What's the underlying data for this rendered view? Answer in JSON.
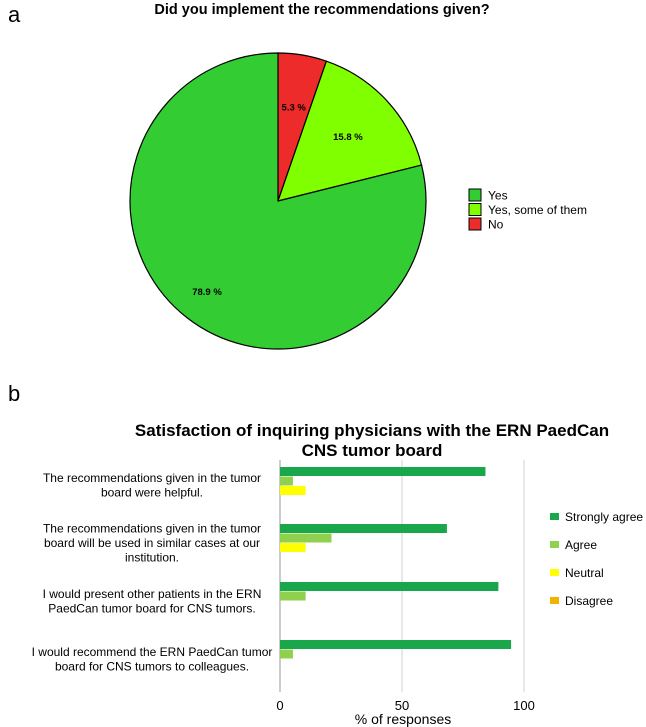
{
  "panels": {
    "a_letter": "a",
    "b_letter": "b"
  },
  "chart_data": [
    {
      "type": "pie",
      "title": "Did you implement the recommendations given?",
      "slices": [
        {
          "label": "No",
          "value": 5.3,
          "value_label": "5.3 %",
          "color": "#ee2b2b"
        },
        {
          "label": "Yes, some of them",
          "value": 15.8,
          "value_label": "15.8 %",
          "color": "#80ff00"
        },
        {
          "label": "Yes",
          "value": 78.9,
          "value_label": "78.9 %",
          "color": "#33cc33"
        }
      ],
      "legend": [
        "Yes",
        "Yes, some of them",
        "No"
      ],
      "legend_position": "right"
    },
    {
      "type": "bar",
      "orientation": "horizontal",
      "title_lines": [
        "Satisfaction of inquiring physicians with the ERN PaedCan",
        "CNS tumor board"
      ],
      "categories": [
        [
          "The recommendations given in the tumor",
          "board were helpful."
        ],
        [
          "The recommendations given in the tumor",
          "board will be used in similar cases at our",
          "institution."
        ],
        [
          "I would present other patients in the ERN",
          "PaedCan tumor board for CNS tumors."
        ],
        [
          "I would recommend the ERN PaedCan tumor",
          "board for CNS tumors to colleagues."
        ]
      ],
      "series": [
        {
          "name": "Strongly agree",
          "color": "#1aa64b",
          "values": [
            84.2,
            68.4,
            89.5,
            94.7
          ]
        },
        {
          "name": "Agree",
          "color": "#8fd14f",
          "values": [
            5.3,
            21.1,
            10.5,
            5.3
          ]
        },
        {
          "name": "Neutral",
          "color": "#ffff00",
          "values": [
            10.5,
            10.5,
            0,
            0
          ]
        },
        {
          "name": "Disagree",
          "color": "#f0b400",
          "values": [
            0,
            0,
            0,
            0
          ]
        }
      ],
      "x_ticks": [
        "0",
        "50",
        "100"
      ],
      "xlim": [
        0,
        100
      ],
      "xlabel": "% of responses",
      "grid": true,
      "legend_position": "right"
    }
  ]
}
